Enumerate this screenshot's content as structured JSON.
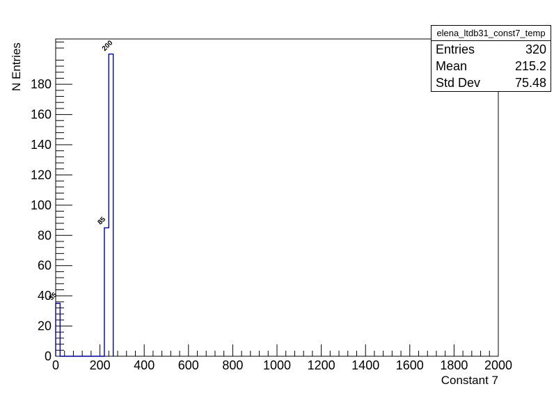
{
  "stats_box": {
    "title": "elena_ltdb31_const7_temp",
    "rows": [
      {
        "label": "Entries",
        "value": "320"
      },
      {
        "label": "Mean",
        "value": "215.2"
      },
      {
        "label": "Std Dev",
        "value": "75.48"
      }
    ]
  },
  "axes": {
    "x_title": "Constant 7",
    "y_title": "N Entries"
  },
  "chart_data": {
    "type": "bar",
    "title": "elena_ltdb31_const7_temp",
    "xlabel": "Constant 7",
    "ylabel": "N Entries",
    "xlim": [
      0,
      2000
    ],
    "ylim": [
      0,
      210
    ],
    "x_major_tick_step": 200,
    "x_minor_tick_step": 40,
    "y_major_tick_step": 20,
    "y_minor_tick_step": 4,
    "grid": false,
    "legend": false,
    "line_color": "#000099",
    "bin_width": 20,
    "bins": [
      {
        "x0": 0,
        "x1": 20,
        "count": 35
      },
      {
        "x0": 220,
        "x1": 240,
        "count": 85
      },
      {
        "x0": 240,
        "x1": 260,
        "count": 200
      }
    ],
    "stats": {
      "entries": 320,
      "mean": 215.2,
      "std_dev": 75.48
    }
  }
}
